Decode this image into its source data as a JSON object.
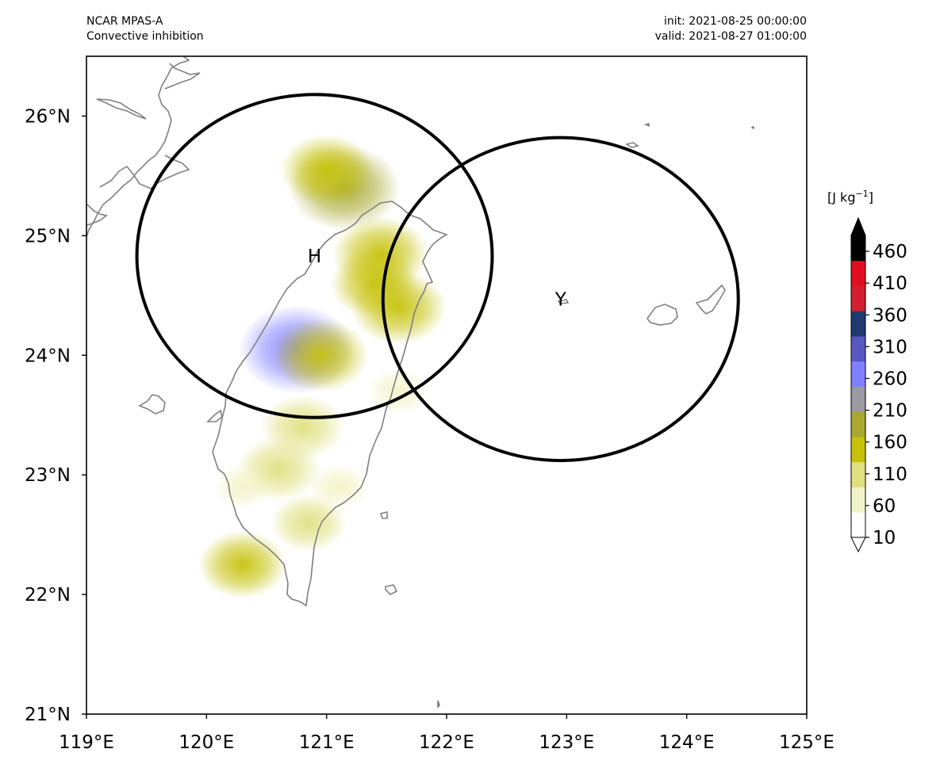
{
  "header": {
    "model": "NCAR MPAS-A",
    "field": "Convective inhibition",
    "init": "init: 2021-08-25 00:00:00",
    "valid": "valid: 2021-08-27 01:00:00"
  },
  "map": {
    "lon_range": [
      119,
      125
    ],
    "lat_range": [
      21,
      26.5
    ],
    "lon_ticks": [
      {
        "value": 119,
        "label": "119°E"
      },
      {
        "value": 120,
        "label": "120°E"
      },
      {
        "value": 121,
        "label": "121°E"
      },
      {
        "value": 122,
        "label": "122°E"
      },
      {
        "value": 123,
        "label": "123°E"
      },
      {
        "value": 124,
        "label": "124°E"
      },
      {
        "value": 125,
        "label": "125°E"
      }
    ],
    "lat_ticks": [
      {
        "value": 21,
        "label": "21°N"
      },
      {
        "value": 22,
        "label": "22°N"
      },
      {
        "value": 23,
        "label": "23°N"
      },
      {
        "value": 24,
        "label": "24°N"
      },
      {
        "value": 25,
        "label": "25°N"
      },
      {
        "value": 26,
        "label": "26°N"
      }
    ],
    "markers": [
      {
        "label": "H",
        "lon": 120.9,
        "lat": 24.83,
        "radius_deg_lon": 1.48,
        "radius_deg_lat": 1.35
      },
      {
        "label": "Y",
        "lon": 122.95,
        "lat": 24.47,
        "radius_deg_lon": 1.48,
        "radius_deg_lat": 1.35
      }
    ],
    "coast_color": "#808080",
    "circle_color": "#000000"
  },
  "colorbar": {
    "units_base": "[J kg",
    "units_exp": "−1",
    "units_close": "]",
    "ticks": [
      "10",
      "60",
      "110",
      "160",
      "210",
      "260",
      "310",
      "360",
      "410",
      "460"
    ],
    "colors": [
      "#ffffff",
      "#f3f3c8",
      "#e0e080",
      "#c6c20a",
      "#a8a830",
      "#9a9aa0",
      "#8080ff",
      "#5858c0",
      "#1e3a70",
      "#d22030",
      "#e01020",
      "#000000"
    ]
  },
  "chart_data": {
    "type": "heatmap",
    "title": "Convective inhibition",
    "xlabel": "",
    "ylabel": "",
    "xlim": [
      119,
      125
    ],
    "ylim": [
      21,
      26.5
    ],
    "colorbar_range": [
      10,
      485
    ],
    "series": [
      {
        "lon": 121.15,
        "lat": 25.4,
        "value": 190
      },
      {
        "lon": 121.0,
        "lat": 25.55,
        "value": 140
      },
      {
        "lon": 121.45,
        "lat": 24.85,
        "value": 150
      },
      {
        "lon": 121.6,
        "lat": 24.4,
        "value": 150
      },
      {
        "lon": 121.4,
        "lat": 24.6,
        "value": 130
      },
      {
        "lon": 120.75,
        "lat": 24.05,
        "value": 260
      },
      {
        "lon": 120.95,
        "lat": 24.0,
        "value": 150
      },
      {
        "lon": 120.8,
        "lat": 23.4,
        "value": 120
      },
      {
        "lon": 120.6,
        "lat": 23.05,
        "value": 120
      },
      {
        "lon": 120.85,
        "lat": 22.6,
        "value": 100
      },
      {
        "lon": 120.3,
        "lat": 22.25,
        "value": 130
      },
      {
        "lon": 120.3,
        "lat": 22.9,
        "value": 50
      },
      {
        "lon": 121.6,
        "lat": 23.7,
        "value": 60
      },
      {
        "lon": 121.1,
        "lat": 22.9,
        "value": 60
      }
    ]
  }
}
